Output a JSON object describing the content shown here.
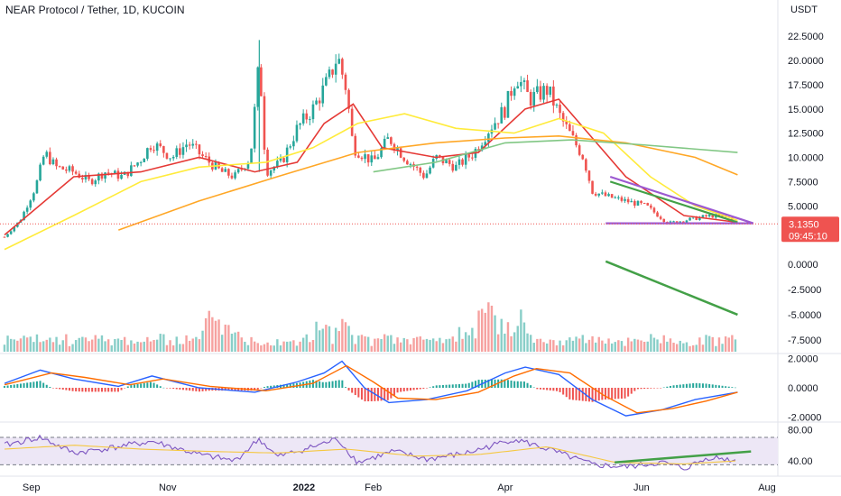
{
  "header": {
    "title": "NEAR Protocol / Tether, 1D, KUCOIN",
    "currency": "USDT"
  },
  "price_tag": {
    "price": "3.1350",
    "countdown": "09:45:10"
  },
  "colors": {
    "up": "#26a69a",
    "down": "#ef5350",
    "ma_red": "#e53935",
    "ma_yellow": "#ffeb3b",
    "ma_orange": "#ffa726",
    "ma_green": "#81c784",
    "trend_purple": "#9c59d1",
    "trend_green": "#43a047",
    "macd_blue": "#2962ff",
    "macd_signal": "#ff6d00",
    "rsi_line": "#7e57c2",
    "rsi_band": "#ede7f6",
    "rsi_ma": "#f5c842"
  },
  "chart_data": [
    {
      "type": "candlestick",
      "pane": "price",
      "unit": "USDT",
      "ylim": [
        0,
        24
      ],
      "yticks": [
        "22.5000",
        "20.0000",
        "17.5000",
        "15.0000",
        "12.5000",
        "10.0000",
        "7.5000",
        "5.0000"
      ],
      "ytick_values": [
        22.5,
        20,
        17.5,
        15,
        12.5,
        10,
        7.5,
        5
      ],
      "xticks": [
        {
          "label": "Sep",
          "bold": false
        },
        {
          "label": "Nov",
          "bold": false
        },
        {
          "label": "2022",
          "bold": true
        },
        {
          "label": "Feb",
          "bold": false
        },
        {
          "label": "Apr",
          "bold": false
        },
        {
          "label": "Jun",
          "bold": false
        },
        {
          "label": "Aug",
          "bold": false
        }
      ],
      "close_path": [
        [
          "2021-08-20",
          1.8
        ],
        [
          "2021-08-27",
          3.5
        ],
        [
          "2021-09-03",
          7.0
        ],
        [
          "2021-09-07",
          10.5
        ],
        [
          "2021-09-12",
          9.0
        ],
        [
          "2021-09-20",
          8.5
        ],
        [
          "2021-09-27",
          7.5
        ],
        [
          "2021-10-04",
          8.5
        ],
        [
          "2021-10-12",
          8.0
        ],
        [
          "2021-10-20",
          9.8
        ],
        [
          "2021-10-25",
          11.5
        ],
        [
          "2021-11-03",
          10.0
        ],
        [
          "2021-11-10",
          11.5
        ],
        [
          "2021-11-17",
          10.0
        ],
        [
          "2021-11-25",
          8.5
        ],
        [
          "2021-12-01",
          8.0
        ],
        [
          "2021-12-08",
          10.0
        ],
        [
          "2021-12-12",
          20.0
        ],
        [
          "2021-12-15",
          8.5
        ],
        [
          "2021-12-22",
          9.5
        ],
        [
          "2021-12-29",
          13.0
        ],
        [
          "2022-01-05",
          15.0
        ],
        [
          "2022-01-12",
          18.0
        ],
        [
          "2022-01-16",
          20.5
        ],
        [
          "2022-01-20",
          17.0
        ],
        [
          "2022-01-23",
          11.0
        ],
        [
          "2022-02-01",
          9.5
        ],
        [
          "2022-02-08",
          12.0
        ],
        [
          "2022-02-15",
          10.0
        ],
        [
          "2022-02-24",
          8.0
        ],
        [
          "2022-03-01",
          10.0
        ],
        [
          "2022-03-10",
          9.0
        ],
        [
          "2022-03-18",
          10.5
        ],
        [
          "2022-03-25",
          13.0
        ],
        [
          "2022-04-01",
          15.0
        ],
        [
          "2022-04-06",
          18.5
        ],
        [
          "2022-04-12",
          16.0
        ],
        [
          "2022-04-20",
          17.0
        ],
        [
          "2022-04-26",
          14.0
        ],
        [
          "2022-05-01",
          12.0
        ],
        [
          "2022-05-06",
          10.0
        ],
        [
          "2022-05-10",
          6.5
        ],
        [
          "2022-05-16",
          6.0
        ],
        [
          "2022-05-25",
          5.5
        ],
        [
          "2022-06-03",
          5.0
        ],
        [
          "2022-06-13",
          3.2
        ],
        [
          "2022-06-20",
          3.5
        ],
        [
          "2022-07-02",
          4.0
        ],
        [
          "2022-07-10",
          3.8
        ],
        [
          "2022-07-14",
          3.1
        ]
      ],
      "moving_averages": [
        {
          "color_key": "ma_red",
          "points": [
            [
              "2021-08-20",
              2.0
            ],
            [
              "2021-09-20",
              8.0
            ],
            [
              "2021-10-20",
              8.5
            ],
            [
              "2021-11-15",
              10.0
            ],
            [
              "2021-12-10",
              8.5
            ],
            [
              "2021-12-29",
              9.5
            ],
            [
              "2022-01-10",
              13.5
            ],
            [
              "2022-01-23",
              15.5
            ],
            [
              "2022-02-05",
              11.0
            ],
            [
              "2022-03-01",
              10.0
            ],
            [
              "2022-03-20",
              10.5
            ],
            [
              "2022-04-10",
              15.0
            ],
            [
              "2022-04-25",
              16.0
            ],
            [
              "2022-05-10",
              12.0
            ],
            [
              "2022-05-25",
              8.0
            ],
            [
              "2022-06-20",
              4.0
            ],
            [
              "2022-07-14",
              3.3
            ]
          ]
        },
        {
          "color_key": "ma_yellow",
          "points": [
            [
              "2021-08-20",
              0.5
            ],
            [
              "2021-09-20",
              4.0
            ],
            [
              "2021-10-20",
              7.5
            ],
            [
              "2021-11-15",
              9.0
            ],
            [
              "2021-12-15",
              9.5
            ],
            [
              "2022-01-05",
              11.0
            ],
            [
              "2022-01-25",
              13.5
            ],
            [
              "2022-02-15",
              14.5
            ],
            [
              "2022-03-10",
              13.0
            ],
            [
              "2022-04-05",
              12.5
            ],
            [
              "2022-04-25",
              14.0
            ],
            [
              "2022-05-15",
              12.5
            ],
            [
              "2022-06-05",
              8.0
            ],
            [
              "2022-06-25",
              5.0
            ],
            [
              "2022-07-14",
              3.5
            ]
          ]
        },
        {
          "color_key": "ma_orange",
          "points": [
            [
              "2021-10-10",
              2.5
            ],
            [
              "2021-11-15",
              5.5
            ],
            [
              "2021-12-20",
              8.0
            ],
            [
              "2022-01-25",
              10.5
            ],
            [
              "2022-03-01",
              11.5
            ],
            [
              "2022-04-01",
              12.0
            ],
            [
              "2022-04-25",
              12.2
            ],
            [
              "2022-05-25",
              11.5
            ],
            [
              "2022-06-25",
              10.0
            ],
            [
              "2022-07-14",
              8.2
            ]
          ]
        },
        {
          "color_key": "ma_green",
          "points": [
            [
              "2022-02-01",
              8.5
            ],
            [
              "2022-03-01",
              9.5
            ],
            [
              "2022-04-01",
              11.5
            ],
            [
              "2022-05-01",
              11.8
            ],
            [
              "2022-06-01",
              11.3
            ],
            [
              "2022-07-14",
              10.5
            ]
          ]
        }
      ],
      "trendlines": [
        {
          "color_key": "trend_purple",
          "from": [
            "2022-05-18",
            8.0
          ],
          "to": [
            "2022-07-21",
            3.2
          ]
        },
        {
          "color_key": "trend_green",
          "from": [
            "2022-05-18",
            7.5
          ],
          "to": [
            "2022-07-14",
            3.3
          ]
        },
        {
          "color_key": "trend_purple",
          "from": [
            "2022-05-16",
            3.2
          ],
          "to": [
            "2022-07-21",
            3.2
          ]
        }
      ],
      "last_price": 3.135
    },
    {
      "type": "bar",
      "pane": "indicator_1",
      "ylim": [
        -8.5,
        1.0
      ],
      "yticks": [
        "0.0000",
        "-2.5000",
        "-5.0000",
        "-7.5000"
      ],
      "ytick_values": [
        0.0,
        -2.5,
        -5.0,
        -7.5
      ],
      "trendline": {
        "color_key": "trend_green",
        "from": [
          "2022-05-16",
          0.3
        ],
        "to": [
          "2022-07-14",
          -5.0
        ]
      }
    },
    {
      "type": "line",
      "pane": "macd",
      "ylim": [
        -2.2,
        2.2
      ],
      "yticks": [
        "2.0000",
        "0.0000",
        "-2.0000"
      ],
      "ytick_values": [
        2.0,
        0.0,
        -2.0
      ],
      "series": [
        {
          "color_key": "macd_blue",
          "points": [
            [
              "2021-08-20",
              0.3
            ],
            [
              "2021-09-05",
              1.2
            ],
            [
              "2021-09-20",
              0.6
            ],
            [
              "2021-10-10",
              0.1
            ],
            [
              "2021-10-25",
              0.8
            ],
            [
              "2021-11-15",
              0.0
            ],
            [
              "2021-12-10",
              -0.3
            ],
            [
              "2021-12-29",
              0.4
            ],
            [
              "2022-01-10",
              1.0
            ],
            [
              "2022-01-18",
              1.8
            ],
            [
              "2022-01-28",
              0.0
            ],
            [
              "2022-02-08",
              -1.0
            ],
            [
              "2022-02-25",
              -0.8
            ],
            [
              "2022-03-15",
              -0.2
            ],
            [
              "2022-04-01",
              1.0
            ],
            [
              "2022-04-10",
              1.4
            ],
            [
              "2022-04-25",
              0.9
            ],
            [
              "2022-05-10",
              -0.8
            ],
            [
              "2022-05-25",
              -1.9
            ],
            [
              "2022-06-10",
              -1.5
            ],
            [
              "2022-06-25",
              -0.8
            ],
            [
              "2022-07-14",
              -0.3
            ]
          ]
        },
        {
          "color_key": "macd_signal",
          "points": [
            [
              "2021-08-20",
              0.2
            ],
            [
              "2021-09-10",
              1.0
            ],
            [
              "2021-09-25",
              0.7
            ],
            [
              "2021-10-15",
              0.2
            ],
            [
              "2021-10-30",
              0.6
            ],
            [
              "2021-11-20",
              0.1
            ],
            [
              "2021-12-15",
              -0.2
            ],
            [
              "2022-01-05",
              0.3
            ],
            [
              "2022-01-20",
              1.5
            ],
            [
              "2022-02-01",
              0.4
            ],
            [
              "2022-02-12",
              -0.7
            ],
            [
              "2022-03-01",
              -0.8
            ],
            [
              "2022-03-20",
              -0.3
            ],
            [
              "2022-04-05",
              0.8
            ],
            [
              "2022-04-15",
              1.3
            ],
            [
              "2022-04-30",
              1.0
            ],
            [
              "2022-05-15",
              -0.5
            ],
            [
              "2022-05-30",
              -1.7
            ],
            [
              "2022-06-15",
              -1.4
            ],
            [
              "2022-06-30",
              -0.9
            ],
            [
              "2022-07-14",
              -0.3
            ]
          ]
        }
      ]
    },
    {
      "type": "line",
      "pane": "rsi",
      "ylim": [
        25,
        85
      ],
      "yticks": [
        "80.00",
        "40.00"
      ],
      "ytick_values": [
        80,
        40
      ],
      "band": [
        35,
        70
      ],
      "series": [
        {
          "color_key": "rsi_line",
          "points": [
            [
              "2021-08-20",
              60
            ],
            [
              "2021-09-05",
              70
            ],
            [
              "2021-09-20",
              50
            ],
            [
              "2021-10-10",
              58
            ],
            [
              "2021-10-25",
              65
            ],
            [
              "2021-11-15",
              48
            ],
            [
              "2021-12-01",
              40
            ],
            [
              "2021-12-12",
              68
            ],
            [
              "2021-12-20",
              45
            ],
            [
              "2022-01-05",
              58
            ],
            [
              "2022-01-16",
              68
            ],
            [
              "2022-01-25",
              38
            ],
            [
              "2022-02-10",
              52
            ],
            [
              "2022-02-25",
              42
            ],
            [
              "2022-03-15",
              50
            ],
            [
              "2022-04-05",
              68
            ],
            [
              "2022-04-20",
              55
            ],
            [
              "2022-05-10",
              35
            ],
            [
              "2022-05-25",
              32
            ],
            [
              "2022-06-10",
              38
            ],
            [
              "2022-06-20",
              30
            ],
            [
              "2022-07-02",
              45
            ],
            [
              "2022-07-14",
              40
            ]
          ]
        },
        {
          "color_key": "rsi_ma",
          "points": [
            [
              "2021-08-20",
              55
            ],
            [
              "2021-09-20",
              60
            ],
            [
              "2021-10-20",
              55
            ],
            [
              "2021-11-20",
              52
            ],
            [
              "2021-12-20",
              50
            ],
            [
              "2022-01-20",
              55
            ],
            [
              "2022-02-20",
              46
            ],
            [
              "2022-03-20",
              48
            ],
            [
              "2022-04-20",
              58
            ],
            [
              "2022-05-20",
              38
            ],
            [
              "2022-06-20",
              36
            ],
            [
              "2022-07-14",
              40
            ]
          ]
        }
      ],
      "trendline": {
        "color_key": "trend_green",
        "from": [
          "2022-05-20",
          38
        ],
        "to": [
          "2022-07-20",
          52
        ]
      }
    }
  ]
}
